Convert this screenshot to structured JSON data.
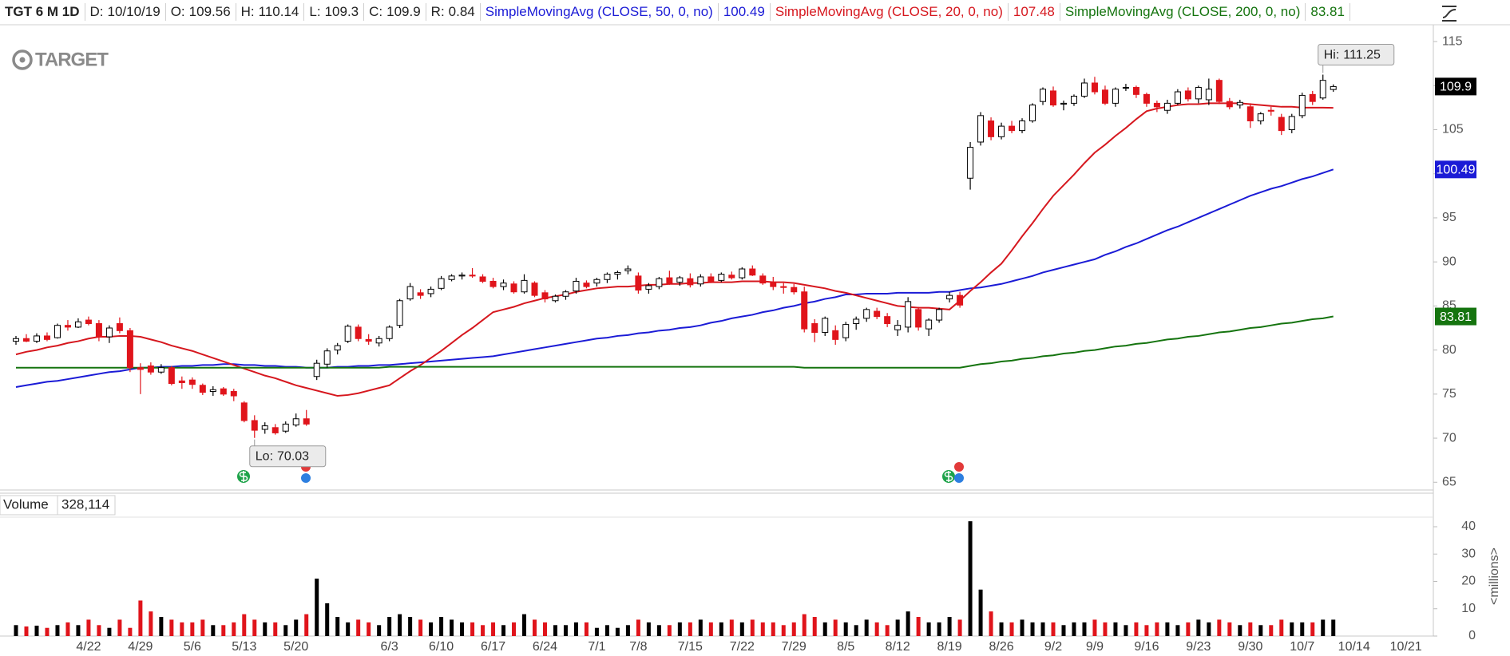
{
  "logo": "TARGET",
  "chart_data": {
    "type": "candlestick",
    "readout": {
      "symbol": "TGT 6 M 1D",
      "date_label": "D:",
      "date": "10/10/19",
      "open_label": "O:",
      "high_label": "H:",
      "low_label": "L:",
      "close_label": "C:",
      "range_label": "R:",
      "range": 0.84
    },
    "categories": [
      null,
      null,
      null,
      null,
      null,
      null,
      null,
      "4/22",
      null,
      null,
      null,
      null,
      "4/29",
      null,
      null,
      null,
      null,
      "5/6",
      null,
      null,
      null,
      null,
      "5/13",
      null,
      null,
      null,
      null,
      "5/20",
      null,
      null,
      null,
      null,
      null,
      null,
      null,
      null,
      "6/3",
      null,
      null,
      null,
      null,
      "6/10",
      null,
      null,
      null,
      null,
      "6/17",
      null,
      null,
      null,
      null,
      "6/24",
      null,
      null,
      null,
      null,
      "7/1",
      null,
      null,
      null,
      "7/8",
      null,
      null,
      null,
      null,
      "7/15",
      null,
      null,
      null,
      null,
      "7/22",
      null,
      null,
      null,
      null,
      "7/29",
      null,
      null,
      null,
      null,
      "8/5",
      null,
      null,
      null,
      null,
      "8/12",
      null,
      null,
      null,
      null,
      "8/19",
      null,
      null,
      null,
      null,
      "8/26",
      null,
      null,
      null,
      null,
      "9/2",
      null,
      null,
      null,
      "9/9",
      null,
      null,
      null,
      null,
      "9/16",
      null,
      null,
      null,
      null,
      "9/23",
      null,
      null,
      null,
      null,
      "9/30",
      null,
      null,
      null,
      null,
      "10/7",
      null,
      null,
      null,
      null,
      "10/14",
      null,
      null,
      null,
      null,
      "10/21",
      null
    ],
    "open": [
      81.0,
      81.3,
      81.0,
      81.6,
      81.4,
      82.8,
      82.6,
      83.4,
      83.0,
      81.5,
      83.0,
      82.2,
      78.0,
      78.2,
      77.5,
      78.0,
      76.5,
      76.6,
      76.0,
      75.3,
      75.6,
      75.3,
      74.0,
      72.0,
      71.0,
      71.2,
      70.8,
      71.5,
      72.2,
      77.0,
      78.4,
      80.0,
      81.0,
      82.6,
      81.2,
      80.8,
      81.3,
      82.8,
      85.8,
      86.5,
      86.4,
      87.0,
      88.0,
      88.4,
      88.5,
      88.3,
      87.8,
      87.2,
      87.5,
      86.6,
      87.6,
      86.5,
      85.6,
      86.1,
      86.7,
      87.6,
      87.6,
      88.0,
      88.6,
      89.0,
      88.4,
      86.9,
      87.2,
      88.2,
      87.7,
      88.1,
      87.5,
      88.3,
      87.9,
      88.5,
      88.2,
      89.2,
      88.4,
      87.7,
      87.2,
      87.1,
      86.6,
      83.0,
      82.0,
      82.2,
      81.4,
      83.0,
      83.6,
      84.4,
      83.8,
      82.3,
      82.6,
      84.6,
      82.4,
      83.4,
      85.8,
      86.2,
      99.5,
      103.6,
      106.0,
      104.2,
      105.4,
      104.9,
      106.0,
      108.2,
      109.4,
      107.9,
      108.0,
      108.8,
      110.3,
      109.5,
      108.0,
      109.8,
      109.8,
      109.0,
      108.0,
      107.2,
      108.0,
      109.4,
      108.5,
      108.4,
      110.6,
      108.2,
      107.8,
      107.6,
      106.0,
      107.2,
      106.4,
      105.0,
      106.6,
      109.0,
      108.6,
      109.56,
      null,
      null,
      null,
      null,
      null,
      null,
      null,
      null
    ],
    "high": [
      81.6,
      81.8,
      81.9,
      82.0,
      83.0,
      83.4,
      83.6,
      83.8,
      83.4,
      82.8,
      83.7,
      82.5,
      78.5,
      78.6,
      78.4,
      78.2,
      77.0,
      76.9,
      76.2,
      75.9,
      75.8,
      75.6,
      74.2,
      72.6,
      71.8,
      71.6,
      71.9,
      72.8,
      73.2,
      78.9,
      80.2,
      80.8,
      82.9,
      82.9,
      81.8,
      81.6,
      82.8,
      85.8,
      87.6,
      86.9,
      87.2,
      88.4,
      88.6,
      88.8,
      89.3,
      88.6,
      88.2,
      88.0,
      87.8,
      88.6,
      87.8,
      86.8,
      86.3,
      86.8,
      88.2,
      87.9,
      88.2,
      88.8,
      89.0,
      89.6,
      88.8,
      87.6,
      88.3,
      89.0,
      88.4,
      88.7,
      88.6,
      88.7,
      88.8,
      88.9,
      89.4,
      89.6,
      88.7,
      88.3,
      87.6,
      87.5,
      87.2,
      83.5,
      83.8,
      82.8,
      83.2,
      83.8,
      84.8,
      84.8,
      84.2,
      83.4,
      86.0,
      84.9,
      83.6,
      84.8,
      86.6,
      86.6,
      103.6,
      107.0,
      106.4,
      105.8,
      106.0,
      106.3,
      108.0,
      109.8,
      109.9,
      108.3,
      109.0,
      110.8,
      111.0,
      110.0,
      109.8,
      110.2,
      110.0,
      109.2,
      108.3,
      108.4,
      109.6,
      109.8,
      110.0,
      110.8,
      110.8,
      108.6,
      108.4,
      108.0,
      107.0,
      107.6,
      106.8,
      106.8,
      109.2,
      109.4,
      111.25,
      110.14,
      null,
      null,
      null,
      null,
      null,
      null,
      null,
      null
    ],
    "low": [
      80.6,
      80.9,
      80.8,
      81.0,
      81.3,
      82.2,
      82.5,
      82.8,
      81.0,
      80.8,
      81.9,
      77.5,
      75.0,
      77.2,
      77.3,
      76.0,
      75.6,
      75.6,
      74.9,
      74.8,
      74.8,
      74.2,
      71.8,
      70.03,
      70.5,
      70.4,
      70.6,
      71.3,
      71.4,
      76.6,
      78.0,
      79.5,
      80.8,
      81.0,
      80.6,
      80.4,
      81.0,
      82.5,
      85.6,
      85.8,
      86.0,
      86.8,
      87.8,
      88.0,
      88.2,
      87.6,
      87.0,
      86.8,
      86.4,
      86.4,
      86.0,
      85.4,
      85.4,
      85.7,
      86.4,
      87.0,
      87.2,
      87.6,
      88.0,
      88.6,
      86.4,
      86.4,
      86.9,
      87.4,
      87.3,
      87.1,
      87.2,
      87.6,
      87.7,
      88.0,
      88.0,
      88.4,
      87.4,
      86.8,
      86.4,
      86.3,
      82.0,
      80.9,
      81.6,
      80.6,
      81.0,
      82.3,
      83.2,
      83.5,
      82.6,
      81.6,
      82.0,
      82.2,
      81.6,
      83.1,
      85.4,
      84.8,
      98.2,
      103.2,
      103.8,
      103.9,
      104.6,
      104.6,
      105.8,
      107.8,
      107.6,
      107.2,
      107.7,
      108.6,
      109.0,
      107.8,
      107.6,
      109.4,
      108.6,
      107.6,
      107.0,
      106.8,
      107.8,
      108.2,
      108.0,
      107.8,
      107.9,
      107.3,
      107.4,
      105.2,
      105.6,
      106.6,
      104.4,
      104.6,
      106.3,
      107.8,
      108.4,
      109.3,
      null,
      null,
      null,
      null,
      null,
      null,
      null,
      null
    ],
    "close": [
      81.3,
      81.0,
      81.6,
      81.2,
      82.8,
      82.6,
      83.2,
      83.0,
      81.5,
      82.5,
      82.2,
      78.0,
      77.8,
      77.5,
      78.0,
      76.2,
      76.3,
      76.1,
      75.2,
      75.5,
      75.0,
      74.8,
      72.0,
      70.9,
      71.4,
      70.6,
      71.6,
      72.2,
      71.6,
      78.5,
      79.9,
      80.5,
      82.7,
      81.3,
      81.0,
      81.3,
      82.6,
      85.6,
      87.2,
      86.2,
      86.9,
      88.1,
      88.4,
      88.5,
      88.4,
      87.8,
      87.2,
      87.6,
      86.6,
      87.9,
      86.2,
      85.8,
      86.1,
      86.6,
      87.8,
      87.2,
      88.0,
      88.6,
      88.8,
      89.2,
      86.8,
      87.3,
      88.1,
      87.6,
      88.2,
      87.4,
      88.3,
      87.8,
      88.6,
      88.2,
      89.2,
      88.5,
      87.6,
      87.2,
      87.1,
      86.6,
      82.4,
      82.0,
      83.6,
      81.2,
      82.9,
      83.5,
      84.6,
      83.8,
      83.0,
      82.8,
      85.5,
      82.6,
      83.4,
      84.6,
      86.2,
      85.1,
      103.0,
      106.6,
      104.2,
      105.4,
      104.9,
      106.0,
      107.8,
      109.6,
      107.8,
      108.0,
      108.8,
      110.3,
      109.3,
      108.0,
      109.6,
      109.8,
      109.0,
      108.0,
      107.6,
      108.0,
      109.3,
      108.5,
      109.8,
      109.6,
      108.2,
      107.6,
      108.1,
      106.0,
      106.8,
      107.1,
      104.9,
      106.5,
      108.9,
      108.2,
      110.6,
      109.9,
      null,
      null,
      null,
      null,
      null,
      null,
      null,
      null
    ],
    "up_color": "#000000",
    "down_color": "#e0141b",
    "close_badge_color": "#000000",
    "series": [
      {
        "name": "SimpleMovingAvg (CLOSE, 50, 0, no)",
        "color": "#1b1bd6",
        "badge": true,
        "values": [
          75.8,
          76.0,
          76.2,
          76.4,
          76.5,
          76.7,
          76.9,
          77.1,
          77.3,
          77.5,
          77.6,
          77.8,
          78.0,
          78.0,
          78.1,
          78.1,
          78.2,
          78.2,
          78.3,
          78.3,
          78.4,
          78.4,
          78.3,
          78.3,
          78.2,
          78.2,
          78.1,
          78.1,
          78.0,
          78.0,
          78.0,
          78.1,
          78.1,
          78.2,
          78.2,
          78.3,
          78.3,
          78.4,
          78.5,
          78.6,
          78.7,
          78.8,
          78.9,
          79.0,
          79.1,
          79.2,
          79.3,
          79.5,
          79.7,
          79.9,
          80.1,
          80.3,
          80.5,
          80.7,
          80.9,
          81.1,
          81.3,
          81.4,
          81.6,
          81.7,
          81.9,
          82.0,
          82.2,
          82.3,
          82.5,
          82.6,
          82.8,
          83.1,
          83.3,
          83.6,
          83.8,
          84.0,
          84.3,
          84.5,
          84.8,
          85.0,
          85.3,
          85.5,
          85.8,
          86.0,
          86.3,
          86.3,
          86.4,
          86.4,
          86.4,
          86.5,
          86.5,
          86.5,
          86.5,
          86.6,
          86.6,
          86.8,
          87.0,
          87.1,
          87.3,
          87.5,
          87.8,
          88.1,
          88.4,
          88.8,
          89.1,
          89.4,
          89.7,
          90.0,
          90.3,
          90.8,
          91.2,
          91.7,
          92.1,
          92.6,
          93.1,
          93.6,
          94.0,
          94.5,
          95.0,
          95.5,
          96.0,
          96.5,
          97.0,
          97.5,
          97.9,
          98.3,
          98.6,
          99.0,
          99.4,
          99.7,
          100.1,
          100.49,
          null,
          null,
          null,
          null,
          null,
          null,
          null,
          null
        ]
      },
      {
        "name": "SimpleMovingAvg (CLOSE, 20, 0, no)",
        "color": "#d6171e",
        "badge": false,
        "values": [
          79.5,
          79.8,
          80.0,
          80.3,
          80.5,
          80.8,
          81.0,
          81.3,
          81.5,
          81.5,
          81.6,
          81.6,
          81.5,
          81.2,
          80.9,
          80.5,
          80.2,
          79.9,
          79.5,
          79.1,
          78.7,
          78.3,
          77.9,
          77.5,
          77.1,
          76.8,
          76.4,
          76.0,
          75.7,
          75.4,
          75.1,
          74.8,
          74.9,
          75.1,
          75.4,
          75.7,
          76.0,
          76.8,
          77.6,
          78.3,
          79.1,
          79.9,
          80.8,
          81.7,
          82.5,
          83.4,
          84.3,
          84.6,
          84.9,
          85.3,
          85.6,
          85.9,
          86.1,
          86.3,
          86.6,
          86.8,
          87.0,
          87.1,
          87.2,
          87.2,
          87.3,
          87.4,
          87.4,
          87.5,
          87.5,
          87.6,
          87.6,
          87.7,
          87.7,
          87.7,
          87.8,
          87.8,
          87.8,
          87.7,
          87.7,
          87.6,
          87.4,
          87.2,
          87.0,
          86.7,
          86.5,
          86.2,
          85.9,
          85.6,
          85.3,
          85.0,
          84.9,
          84.8,
          84.8,
          84.7,
          84.6,
          85.6,
          86.7,
          87.7,
          88.8,
          89.8,
          91.3,
          92.9,
          94.4,
          96.0,
          97.5,
          98.7,
          99.9,
          101.2,
          102.4,
          103.3,
          104.3,
          105.2,
          106.2,
          107.1,
          107.4,
          107.6,
          107.8,
          107.9,
          107.9,
          108.0,
          108.0,
          108.0,
          108.0,
          107.9,
          107.8,
          107.7,
          107.6,
          107.6,
          107.5,
          107.5,
          107.5,
          107.48,
          null,
          null,
          null,
          null,
          null,
          null,
          null,
          null
        ]
      },
      {
        "name": "SimpleMovingAvg (CLOSE, 200, 0, no)",
        "color": "#15740f",
        "badge": true,
        "values": [
          78.0,
          78.0,
          78.0,
          78.0,
          78.0,
          78.0,
          78.0,
          78.0,
          78.0,
          78.0,
          78.0,
          78.0,
          78.0,
          78.0,
          78.0,
          78.0,
          78.0,
          78.0,
          78.0,
          78.0,
          78.0,
          78.0,
          78.0,
          78.0,
          78.0,
          78.0,
          78.0,
          78.0,
          78.0,
          78.0,
          78.0,
          78.0,
          78.0,
          78.0,
          78.0,
          78.0,
          78.1,
          78.1,
          78.1,
          78.1,
          78.1,
          78.1,
          78.1,
          78.1,
          78.1,
          78.1,
          78.1,
          78.1,
          78.1,
          78.1,
          78.1,
          78.1,
          78.1,
          78.1,
          78.1,
          78.1,
          78.1,
          78.1,
          78.1,
          78.1,
          78.1,
          78.1,
          78.1,
          78.1,
          78.1,
          78.1,
          78.1,
          78.1,
          78.1,
          78.1,
          78.1,
          78.1,
          78.1,
          78.1,
          78.1,
          78.1,
          78.0,
          78.0,
          78.0,
          78.0,
          78.0,
          78.0,
          78.0,
          78.0,
          78.0,
          78.0,
          78.0,
          78.0,
          78.0,
          78.0,
          78.0,
          78.0,
          78.2,
          78.4,
          78.5,
          78.7,
          78.8,
          79.0,
          79.1,
          79.3,
          79.4,
          79.6,
          79.7,
          79.9,
          80.0,
          80.2,
          80.4,
          80.5,
          80.7,
          80.8,
          81.0,
          81.2,
          81.3,
          81.5,
          81.6,
          81.8,
          82.0,
          82.1,
          82.3,
          82.5,
          82.6,
          82.8,
          83.0,
          83.1,
          83.3,
          83.5,
          83.6,
          83.81,
          null,
          null,
          null,
          null,
          null,
          null,
          null,
          null
        ]
      }
    ],
    "hi_label": "Hi:",
    "lo_label": "Lo:",
    "ylim": [
      64.3,
      117
    ],
    "yticks": [
      65,
      70,
      75,
      80,
      85,
      90,
      95,
      100,
      105,
      110,
      115
    ],
    "volume": {
      "title": "Volume",
      "readout": "328,114",
      "axis_label": "<millions>",
      "values": [
        4,
        3.5,
        3.8,
        3,
        4,
        5,
        4,
        6,
        4,
        3,
        6,
        3,
        13,
        9,
        7,
        6,
        5,
        5,
        6,
        4,
        4,
        5,
        8,
        6,
        5,
        5,
        4,
        6,
        8,
        21,
        12,
        7,
        5,
        6,
        5,
        4,
        7,
        8,
        7,
        6,
        5,
        7,
        6,
        5,
        5,
        4,
        5,
        4,
        5,
        8,
        6,
        5,
        4,
        4,
        5,
        5,
        3,
        4,
        3,
        4,
        6,
        5,
        4,
        4,
        5,
        5,
        6,
        5,
        5,
        6,
        5,
        6,
        5,
        5,
        4,
        5,
        8,
        7,
        5,
        6,
        5,
        4,
        6,
        5,
        4,
        6,
        9,
        7,
        5,
        5,
        7,
        6,
        42,
        17,
        9,
        5,
        5,
        6,
        5,
        5,
        5,
        4,
        5,
        5,
        6,
        5,
        5,
        4,
        5,
        4,
        5,
        5,
        4,
        5,
        6,
        5,
        6,
        5,
        4,
        5,
        4,
        4,
        6,
        5,
        5,
        5,
        6,
        6,
        null,
        null,
        null,
        null,
        null,
        null,
        null,
        null
      ],
      "ylim": [
        0,
        43.5
      ],
      "yticks": [
        0,
        10,
        20,
        30,
        40
      ]
    }
  }
}
